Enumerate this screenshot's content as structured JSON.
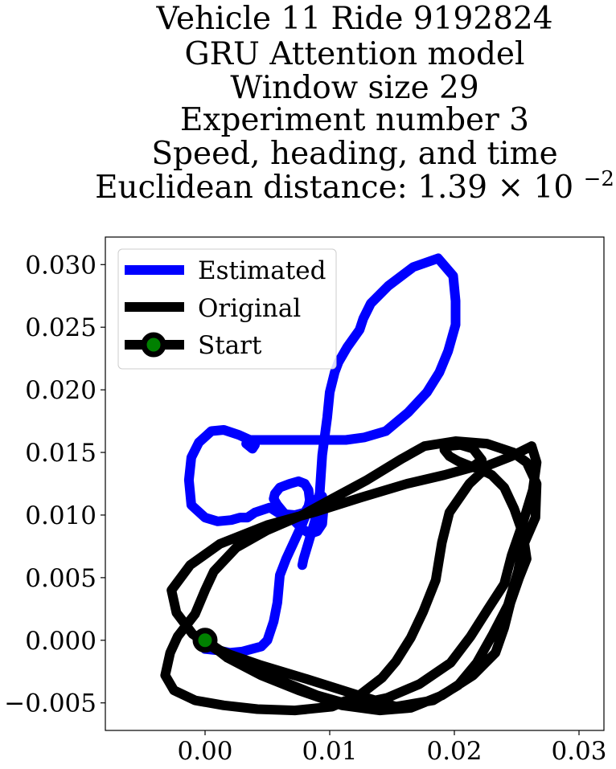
{
  "chart_data": {
    "type": "line",
    "title_lines": [
      "Vehicle 11 Ride 9192824",
      "GRU Attention model",
      "Window size 29",
      "Experiment number 3",
      "Speed, heading, and time"
    ],
    "title_distance_prefix": "Euclidean distance: 1.39",
    "title_distance_times": "×",
    "title_distance_base": "10",
    "title_distance_exponent": "−2",
    "xlabel": "",
    "ylabel": "",
    "xlim": [
      -0.008,
      0.032
    ],
    "ylim": [
      -0.0072,
      0.0322
    ],
    "x_ticks": [
      {
        "value": 0.0,
        "label": "0.00"
      },
      {
        "value": 0.01,
        "label": "0.01"
      },
      {
        "value": 0.02,
        "label": "0.02"
      },
      {
        "value": 0.03,
        "label": "0.03"
      }
    ],
    "y_ticks": [
      {
        "value": -0.005,
        "label": "−0.005"
      },
      {
        "value": 0.0,
        "label": "0.000"
      },
      {
        "value": 0.005,
        "label": "0.005"
      },
      {
        "value": 0.01,
        "label": "0.010"
      },
      {
        "value": 0.015,
        "label": "0.015"
      },
      {
        "value": 0.02,
        "label": "0.020"
      },
      {
        "value": 0.025,
        "label": "0.025"
      },
      {
        "value": 0.03,
        "label": "0.030"
      }
    ],
    "grid": false,
    "legend_position": "top-left",
    "series": [
      {
        "name": "Estimated",
        "color": "#0000ff",
        "x": [
          0.0,
          0.001,
          0.002,
          0.003,
          0.0045,
          0.005,
          0.0055,
          0.0058,
          0.006,
          0.0065,
          0.0072,
          0.0078,
          0.008,
          0.0082,
          0.0085,
          0.009,
          0.0094,
          0.0095,
          0.0094,
          0.009,
          0.0084,
          0.0078,
          0.0072,
          0.0063,
          0.0058,
          0.0055,
          0.0056,
          0.006,
          0.0068,
          0.0075,
          0.008,
          0.0083,
          0.0084,
          0.0083,
          0.008,
          0.0072,
          0.006,
          0.0052,
          0.004,
          0.0034,
          0.0032,
          0.0028,
          0.0021,
          0.001,
          0.0,
          -0.0011,
          -0.0013,
          -0.0011,
          -0.0005,
          0.0005,
          0.0015,
          0.0027,
          0.0036,
          0.004,
          0.0038,
          0.0033,
          0.0035,
          0.0047,
          0.0075,
          0.0113,
          0.0128,
          0.0145,
          0.0163,
          0.0178,
          0.0188,
          0.0195,
          0.0201,
          0.0201,
          0.0199,
          0.0187,
          0.0167,
          0.0147,
          0.0133,
          0.0127,
          0.0124,
          0.0114,
          0.0107,
          0.0104,
          0.01,
          0.0098,
          0.0094,
          0.0092,
          0.0088,
          0.0083,
          0.0079,
          0.0078
        ],
        "y": [
          -0.0007,
          -0.0008,
          -0.001,
          -0.0009,
          -0.0005,
          0.0,
          0.0015,
          0.003,
          0.0052,
          0.0065,
          0.008,
          0.0093,
          0.0098,
          0.0103,
          0.0108,
          0.0113,
          0.0115,
          0.0105,
          0.0093,
          0.0087,
          0.0085,
          0.0089,
          0.0095,
          0.0102,
          0.0108,
          0.0113,
          0.0117,
          0.0122,
          0.0125,
          0.0127,
          0.0125,
          0.012,
          0.0112,
          0.0107,
          0.0102,
          0.01,
          0.0101,
          0.0106,
          0.0102,
          0.0098,
          0.0098,
          0.0098,
          0.0096,
          0.0095,
          0.0098,
          0.0108,
          0.0128,
          0.0146,
          0.0158,
          0.0167,
          0.0168,
          0.0164,
          0.016,
          0.0156,
          0.0153,
          0.0157,
          0.016,
          0.016,
          0.016,
          0.016,
          0.0162,
          0.0167,
          0.0182,
          0.0198,
          0.0214,
          0.0231,
          0.0252,
          0.0271,
          0.0291,
          0.0305,
          0.0298,
          0.0283,
          0.0269,
          0.0257,
          0.0248,
          0.0234,
          0.0222,
          0.0214,
          0.0198,
          0.0178,
          0.0148,
          0.0118,
          0.0095,
          0.0078,
          0.0065,
          0.006
        ]
      },
      {
        "name": "Original",
        "color": "#000000",
        "x": [
          0.0,
          0.0018,
          0.0045,
          0.0075,
          0.011,
          0.014,
          0.0165,
          0.019,
          0.0215,
          0.0233,
          0.024,
          0.0245,
          0.0252,
          0.0258,
          0.0255,
          0.0248,
          0.024,
          0.023,
          0.0222,
          0.0213,
          0.0203,
          0.0196,
          0.0192,
          0.0195,
          0.0205,
          0.0215,
          0.0222,
          0.0214,
          0.0192,
          0.0162,
          0.0125,
          0.009,
          0.005,
          0.0012,
          -0.0012,
          -0.0027,
          -0.0023,
          -0.001,
          0.001,
          0.0045,
          0.0085,
          0.012,
          0.0153,
          0.0183,
          0.0203,
          0.0218,
          0.0231,
          0.0243,
          0.0251,
          0.0255,
          0.0265,
          0.0266,
          0.0258,
          0.0247,
          0.0226,
          0.0201,
          0.0176,
          0.0158,
          0.013,
          0.0102,
          0.0078,
          0.005,
          0.0025,
          0.0007,
          0.0,
          -0.0008,
          -0.0022,
          -0.0028,
          -0.0032,
          -0.0025,
          -0.0008,
          0.0015,
          0.0042,
          0.0072,
          0.0102,
          0.0125,
          0.0142,
          0.0153,
          0.0165,
          0.0175,
          0.0185,
          0.019,
          0.0196,
          0.0212,
          0.0228,
          0.0246,
          0.0262,
          0.0266,
          0.0263,
          0.0255,
          0.0246,
          0.024,
          0.0227,
          0.0213,
          0.0197,
          0.0172,
          0.0146,
          0.0118,
          0.009,
          0.006,
          0.0035,
          0.0012,
          0.0
        ],
        "y": [
          0.0,
          -0.0014,
          -0.0028,
          -0.004,
          -0.0052,
          -0.0056,
          -0.0054,
          -0.0044,
          -0.0028,
          -0.001,
          0.001,
          0.003,
          0.005,
          0.0065,
          0.0085,
          0.0105,
          0.0122,
          0.0132,
          0.0136,
          0.0139,
          0.0143,
          0.0147,
          0.0152,
          0.0155,
          0.0156,
          0.0153,
          0.0144,
          0.0138,
          0.0132,
          0.0125,
          0.0114,
          0.0103,
          0.0092,
          0.0077,
          0.006,
          0.004,
          0.0022,
          0.0005,
          -0.0008,
          -0.002,
          -0.0032,
          -0.0043,
          -0.0053,
          -0.0048,
          -0.0036,
          -0.0018,
          0.0005,
          0.0028,
          0.0055,
          0.0075,
          0.0098,
          0.0125,
          0.0142,
          0.015,
          0.0157,
          0.0159,
          0.0155,
          0.0145,
          0.0128,
          0.0113,
          0.01,
          0.0088,
          0.0074,
          0.0055,
          0.004,
          0.0021,
          0.0003,
          -0.001,
          -0.0028,
          -0.004,
          -0.0048,
          -0.0052,
          -0.0055,
          -0.0056,
          -0.0053,
          -0.0043,
          -0.003,
          -0.0017,
          0.0002,
          0.0023,
          0.0048,
          0.0078,
          0.0102,
          0.0125,
          0.014,
          0.0147,
          0.0155,
          0.0142,
          0.012,
          0.0094,
          0.0068,
          0.0045,
          0.0025,
          0.0003,
          -0.0018,
          -0.0035,
          -0.0046,
          -0.0052,
          -0.0044,
          -0.0032,
          -0.0018,
          -0.0008,
          0.0
        ]
      }
    ],
    "start_marker": {
      "name": "Start",
      "x": 0.0,
      "y": 0.0,
      "line_color": "#000000",
      "marker_edge_color": "#000000",
      "marker_face_color": "#008000"
    }
  }
}
